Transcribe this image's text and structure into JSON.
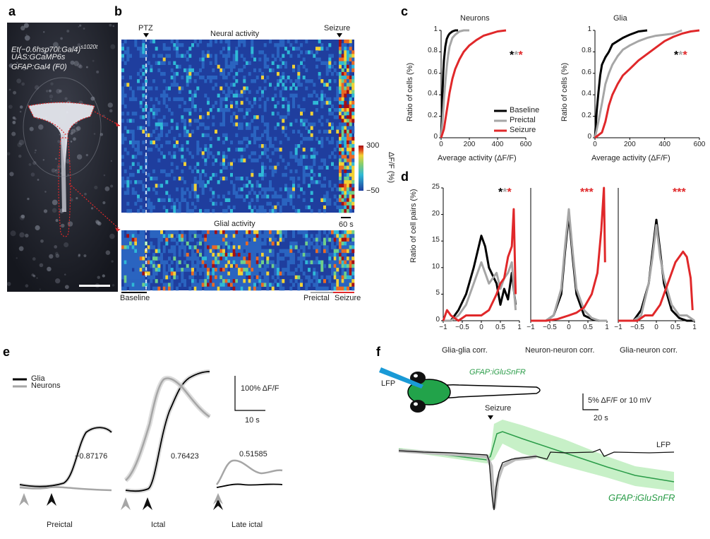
{
  "panels": {
    "a": "a",
    "b": "b",
    "c": "c",
    "d": "d",
    "e": "e",
    "f": "f"
  },
  "a": {
    "line1": "Et(−0.6hsp70l:Gal4)",
    "line1_sup": "s1020t",
    "line2": "UAS:GCaMP6s",
    "line3": "GFAP:Gal4 (F0)"
  },
  "b": {
    "ptz": "PTZ",
    "neural_title": "Neural activity",
    "glial_title": "Glial activity",
    "seizure": "Seizure",
    "colorbar_label": "ΔF/F (%)",
    "cb_max": "300",
    "cb_min": "−50",
    "scale": "60 s",
    "baseline": "Baseline",
    "preictal": "Preictal",
    "seizure_bottom": "Seizure",
    "colors": {
      "low": "#1f3e9e",
      "mid": "#2fb9d6",
      "high": "#f2d135",
      "max": "#a50f15"
    }
  },
  "c": {
    "neurons": {
      "title": "Neurons",
      "xticks": [
        "0",
        "200",
        "400",
        "600"
      ],
      "xlim": [
        0,
        600
      ]
    },
    "glia": {
      "title": "Glia",
      "xticks": [
        "0",
        "200",
        "400",
        "600"
      ],
      "xlim": [
        0,
        600
      ]
    },
    "ylabel": "Ratio of cells (%)",
    "xlabel": "Average activity (ΔF/F)",
    "yticks": [
      "0",
      "0.2",
      "0.4",
      "0.6",
      "0.8",
      "1"
    ],
    "legend": [
      "Baseline",
      "Preictal",
      "Seizure"
    ],
    "colors": {
      "baseline": "#000000",
      "preictal": "#a6a6a6",
      "seizure": "#e0282a"
    }
  },
  "d": {
    "ylabel": "Ratio of cell pairs (%)",
    "yticks": [
      "0",
      "5",
      "10",
      "15",
      "20",
      "25"
    ],
    "xticks": [
      "−1",
      "−0.5",
      "0",
      "0.5",
      "1"
    ],
    "titles": [
      "Glia-glia corr.",
      "Neuron-neuron corr.",
      "Glia-neuron corr."
    ]
  },
  "chart_data": [
    {
      "type": "line",
      "panel": "c-neurons",
      "xlim": [
        0,
        600
      ],
      "ylim": [
        0,
        1
      ],
      "series": [
        {
          "name": "Baseline",
          "x": [
            0,
            5,
            10,
            15,
            20,
            30,
            40,
            50,
            60,
            70,
            80,
            100,
            120
          ],
          "y": [
            0,
            0.2,
            0.42,
            0.6,
            0.72,
            0.85,
            0.92,
            0.95,
            0.97,
            0.98,
            0.99,
            1.0,
            1.0
          ]
        },
        {
          "name": "Preictal",
          "x": [
            0,
            10,
            20,
            30,
            40,
            50,
            60,
            80,
            100,
            130,
            160,
            200
          ],
          "y": [
            0,
            0.15,
            0.35,
            0.52,
            0.66,
            0.77,
            0.85,
            0.93,
            0.96,
            0.99,
            1.0,
            1.0
          ]
        },
        {
          "name": "Seizure",
          "x": [
            0,
            20,
            40,
            60,
            80,
            100,
            130,
            160,
            200,
            250,
            300,
            350,
            400,
            460
          ],
          "y": [
            0,
            0.08,
            0.25,
            0.42,
            0.55,
            0.64,
            0.73,
            0.8,
            0.86,
            0.91,
            0.95,
            0.97,
            0.99,
            1.0
          ]
        }
      ]
    },
    {
      "type": "line",
      "panel": "c-glia",
      "xlim": [
        0,
        600
      ],
      "ylim": [
        0,
        1
      ],
      "series": [
        {
          "name": "Baseline",
          "x": [
            0,
            10,
            20,
            30,
            40,
            60,
            80,
            100,
            130,
            160,
            200,
            250,
            300
          ],
          "y": [
            0,
            0.25,
            0.42,
            0.58,
            0.68,
            0.75,
            0.8,
            0.87,
            0.9,
            0.93,
            0.96,
            0.99,
            1.0
          ]
        },
        {
          "name": "Preictal",
          "x": [
            0,
            20,
            40,
            60,
            80,
            100,
            130,
            160,
            200,
            250,
            300,
            350,
            400,
            450,
            500
          ],
          "y": [
            0,
            0.15,
            0.32,
            0.5,
            0.6,
            0.68,
            0.76,
            0.82,
            0.86,
            0.9,
            0.93,
            0.95,
            0.96,
            0.97,
            1.0
          ]
        },
        {
          "name": "Seizure",
          "x": [
            0,
            40,
            60,
            80,
            100,
            130,
            160,
            200,
            250,
            300,
            350,
            400,
            450,
            500,
            550,
            600
          ],
          "y": [
            0,
            0.05,
            0.15,
            0.3,
            0.4,
            0.5,
            0.58,
            0.64,
            0.72,
            0.78,
            0.84,
            0.9,
            0.94,
            0.97,
            0.99,
            1.0
          ]
        }
      ]
    },
    {
      "type": "line",
      "panel": "d-glia-glia",
      "xlim": [
        -1,
        1
      ],
      "ylim": [
        0,
        25
      ],
      "series": [
        {
          "name": "Baseline",
          "x": [
            -1,
            -0.8,
            -0.6,
            -0.4,
            -0.2,
            -0.1,
            0,
            0.1,
            0.2,
            0.4,
            0.5,
            0.6,
            0.7,
            0.8,
            0.9
          ],
          "y": [
            0,
            0,
            2,
            5,
            10,
            13,
            16,
            14,
            10,
            7,
            3,
            6,
            4,
            9,
            3
          ]
        },
        {
          "name": "Preictal",
          "x": [
            -1,
            -0.8,
            -0.6,
            -0.4,
            -0.2,
            -0.1,
            0,
            0.1,
            0.2,
            0.4,
            0.5,
            0.6,
            0.7,
            0.8,
            0.9
          ],
          "y": [
            0,
            0,
            1,
            3,
            7,
            9,
            11,
            9,
            7,
            9,
            6,
            8,
            9,
            11,
            2
          ]
        },
        {
          "name": "Seizure",
          "x": [
            -1,
            -0.9,
            -0.8,
            -0.6,
            -0.4,
            -0.2,
            0,
            0.2,
            0.4,
            0.5,
            0.6,
            0.7,
            0.8,
            0.85,
            0.9
          ],
          "y": [
            0,
            2,
            1,
            0,
            1,
            1,
            1,
            2,
            5,
            7,
            8,
            12,
            14,
            21,
            5
          ]
        }
      ]
    },
    {
      "type": "line",
      "panel": "d-neuron-neuron",
      "xlim": [
        -1,
        1
      ],
      "ylim": [
        0,
        25
      ],
      "series": [
        {
          "name": "Baseline",
          "x": [
            -1,
            -0.6,
            -0.4,
            -0.2,
            -0.1,
            0,
            0.1,
            0.2,
            0.4,
            0.6,
            0.8,
            1
          ],
          "y": [
            0,
            0,
            1,
            5,
            13,
            20,
            12,
            5,
            1,
            0.3,
            0,
            0
          ]
        },
        {
          "name": "Preictal",
          "x": [
            -1,
            -0.6,
            -0.4,
            -0.2,
            -0.1,
            0,
            0.1,
            0.2,
            0.4,
            0.6,
            0.8,
            1
          ],
          "y": [
            0,
            0,
            1,
            6,
            14,
            21,
            13,
            6,
            2,
            0.5,
            0,
            0
          ]
        },
        {
          "name": "Seizure",
          "x": [
            -1,
            -0.6,
            -0.3,
            0,
            0.2,
            0.4,
            0.6,
            0.75,
            0.85,
            0.92,
            0.95
          ],
          "y": [
            0,
            0,
            0.3,
            1,
            1.5,
            2.5,
            5,
            9,
            17,
            25,
            11
          ]
        }
      ]
    },
    {
      "type": "line",
      "panel": "d-glia-neuron",
      "xlim": [
        -1,
        1
      ],
      "ylim": [
        0,
        25
      ],
      "series": [
        {
          "name": "Baseline",
          "x": [
            -1,
            -0.6,
            -0.4,
            -0.2,
            -0.1,
            0,
            0.1,
            0.2,
            0.4,
            0.6,
            0.8,
            1
          ],
          "y": [
            0,
            0,
            2,
            7,
            13,
            19,
            13,
            7,
            2,
            0.5,
            0,
            0
          ]
        },
        {
          "name": "Preictal",
          "x": [
            -1,
            -0.6,
            -0.4,
            -0.2,
            -0.1,
            0,
            0.1,
            0.2,
            0.4,
            0.6,
            0.8,
            1
          ],
          "y": [
            0,
            0,
            1,
            7,
            12,
            18,
            12,
            8,
            3,
            1,
            1,
            0
          ]
        },
        {
          "name": "Seizure",
          "x": [
            -1,
            -0.7,
            -0.5,
            -0.3,
            -0.1,
            0.1,
            0.3,
            0.5,
            0.6,
            0.7,
            0.8,
            0.9,
            0.95
          ],
          "y": [
            0,
            0,
            0,
            1,
            1,
            3,
            7,
            11,
            12,
            13,
            12,
            8,
            2
          ]
        }
      ]
    }
  ],
  "e": {
    "legend": [
      "Glia",
      "Neurons"
    ],
    "scale_y": "100% ΔF/F",
    "scale_x": "10 s",
    "values": [
      "−0.87176",
      "0.76423",
      "0.51585"
    ],
    "labels": [
      "Preictal",
      "Ictal",
      "Late ictal"
    ]
  },
  "f": {
    "construct": "GFAP:iGluSnFR",
    "lfp": "LFP",
    "seizure": "Seizure",
    "scale_y": "5% ΔF/F or 10 mV",
    "scale_x": "20 s",
    "trace_lfp": "LFP",
    "trace_glu": "GFAP:iGluSnFR"
  }
}
